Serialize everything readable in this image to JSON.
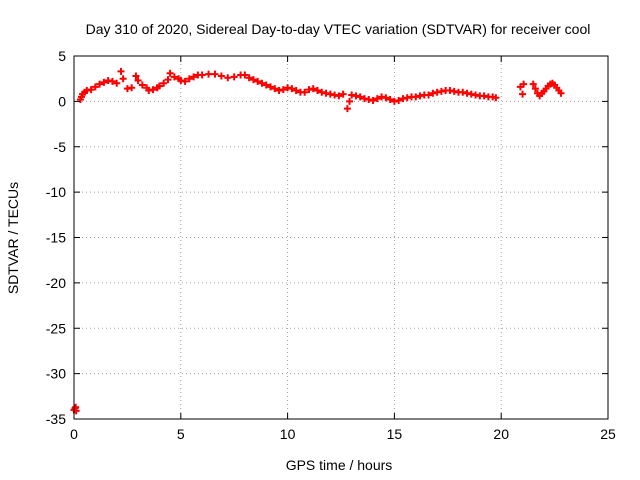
{
  "chart_data": {
    "type": "scatter",
    "title": "Day 310 of 2020, Sidereal Day-to-day VTEC variation (SDTVAR) for receiver cool",
    "xlabel": "GPS time / hours",
    "ylabel": "SDTVAR / TECUs",
    "xlim": [
      0,
      25
    ],
    "ylim": [
      -35,
      5
    ],
    "xticks": [
      0,
      5,
      10,
      15,
      20,
      25
    ],
    "yticks": [
      5,
      0,
      -5,
      -10,
      -15,
      -20,
      -25,
      -30,
      -35
    ],
    "grid": true,
    "marker": "+",
    "color": "#ff0000",
    "series": [
      {
        "name": "SDTVAR",
        "points": [
          [
            0.0,
            -34.0
          ],
          [
            0.05,
            -33.8
          ],
          [
            0.1,
            -34.1
          ],
          [
            0.08,
            -33.7
          ],
          [
            0.3,
            0.2
          ],
          [
            0.35,
            0.5
          ],
          [
            0.4,
            0.8
          ],
          [
            0.5,
            1.0
          ],
          [
            0.6,
            1.2
          ],
          [
            0.8,
            1.3
          ],
          [
            1.0,
            1.6
          ],
          [
            1.2,
            1.9
          ],
          [
            1.4,
            2.1
          ],
          [
            1.6,
            2.3
          ],
          [
            1.8,
            2.2
          ],
          [
            2.0,
            2.0
          ],
          [
            2.2,
            3.3
          ],
          [
            2.3,
            2.5
          ],
          [
            2.5,
            1.4
          ],
          [
            2.7,
            1.5
          ],
          [
            2.9,
            2.8
          ],
          [
            3.0,
            2.3
          ],
          [
            3.2,
            1.8
          ],
          [
            3.4,
            1.5
          ],
          [
            3.5,
            1.2
          ],
          [
            3.7,
            1.3
          ],
          [
            3.9,
            1.5
          ],
          [
            4.0,
            1.7
          ],
          [
            4.2,
            2.0
          ],
          [
            4.4,
            2.4
          ],
          [
            4.5,
            3.1
          ],
          [
            4.7,
            2.7
          ],
          [
            4.9,
            2.5
          ],
          [
            5.0,
            2.3
          ],
          [
            5.2,
            2.2
          ],
          [
            5.4,
            2.5
          ],
          [
            5.6,
            2.7
          ],
          [
            5.8,
            2.9
          ],
          [
            6.0,
            2.9
          ],
          [
            6.3,
            3.0
          ],
          [
            6.6,
            3.0
          ],
          [
            6.9,
            2.8
          ],
          [
            7.2,
            2.6
          ],
          [
            7.5,
            2.7
          ],
          [
            7.8,
            2.9
          ],
          [
            8.0,
            2.9
          ],
          [
            8.2,
            2.6
          ],
          [
            8.4,
            2.4
          ],
          [
            8.6,
            2.2
          ],
          [
            8.8,
            2.0
          ],
          [
            9.0,
            1.8
          ],
          [
            9.2,
            1.6
          ],
          [
            9.4,
            1.4
          ],
          [
            9.6,
            1.2
          ],
          [
            9.8,
            1.3
          ],
          [
            10.0,
            1.5
          ],
          [
            10.2,
            1.4
          ],
          [
            10.4,
            1.2
          ],
          [
            10.6,
            1.0
          ],
          [
            10.8,
            1.0
          ],
          [
            11.0,
            1.3
          ],
          [
            11.2,
            1.4
          ],
          [
            11.4,
            1.2
          ],
          [
            11.6,
            1.0
          ],
          [
            11.8,
            0.9
          ],
          [
            12.0,
            0.8
          ],
          [
            12.2,
            0.7
          ],
          [
            12.4,
            0.6
          ],
          [
            12.6,
            0.8
          ],
          [
            12.8,
            -0.8
          ],
          [
            12.9,
            0.0
          ],
          [
            13.0,
            0.7
          ],
          [
            13.2,
            0.6
          ],
          [
            13.4,
            0.5
          ],
          [
            13.6,
            0.3
          ],
          [
            13.8,
            0.2
          ],
          [
            14.0,
            0.1
          ],
          [
            14.2,
            0.3
          ],
          [
            14.4,
            0.5
          ],
          [
            14.6,
            0.4
          ],
          [
            14.8,
            0.2
          ],
          [
            15.0,
            0.0
          ],
          [
            15.2,
            0.1
          ],
          [
            15.4,
            0.3
          ],
          [
            15.6,
            0.4
          ],
          [
            15.8,
            0.5
          ],
          [
            16.0,
            0.5
          ],
          [
            16.2,
            0.6
          ],
          [
            16.4,
            0.7
          ],
          [
            16.6,
            0.7
          ],
          [
            16.8,
            0.9
          ],
          [
            17.0,
            1.0
          ],
          [
            17.2,
            1.1
          ],
          [
            17.4,
            1.2
          ],
          [
            17.6,
            1.2
          ],
          [
            17.8,
            1.1
          ],
          [
            18.0,
            1.0
          ],
          [
            18.2,
            1.0
          ],
          [
            18.4,
            0.9
          ],
          [
            18.6,
            0.8
          ],
          [
            18.8,
            0.7
          ],
          [
            19.0,
            0.6
          ],
          [
            19.2,
            0.6
          ],
          [
            19.4,
            0.5
          ],
          [
            19.6,
            0.5
          ],
          [
            19.75,
            0.4
          ],
          [
            20.9,
            1.6
          ],
          [
            21.0,
            0.8
          ],
          [
            21.05,
            1.9
          ],
          [
            21.5,
            1.9
          ],
          [
            21.6,
            1.4
          ],
          [
            21.7,
            0.9
          ],
          [
            21.8,
            0.6
          ],
          [
            21.9,
            0.9
          ],
          [
            22.0,
            1.1
          ],
          [
            22.1,
            1.4
          ],
          [
            22.2,
            1.7
          ],
          [
            22.3,
            1.9
          ],
          [
            22.4,
            2.0
          ],
          [
            22.5,
            1.8
          ],
          [
            22.6,
            1.5
          ],
          [
            22.7,
            1.2
          ],
          [
            22.8,
            0.9
          ]
        ]
      }
    ]
  }
}
